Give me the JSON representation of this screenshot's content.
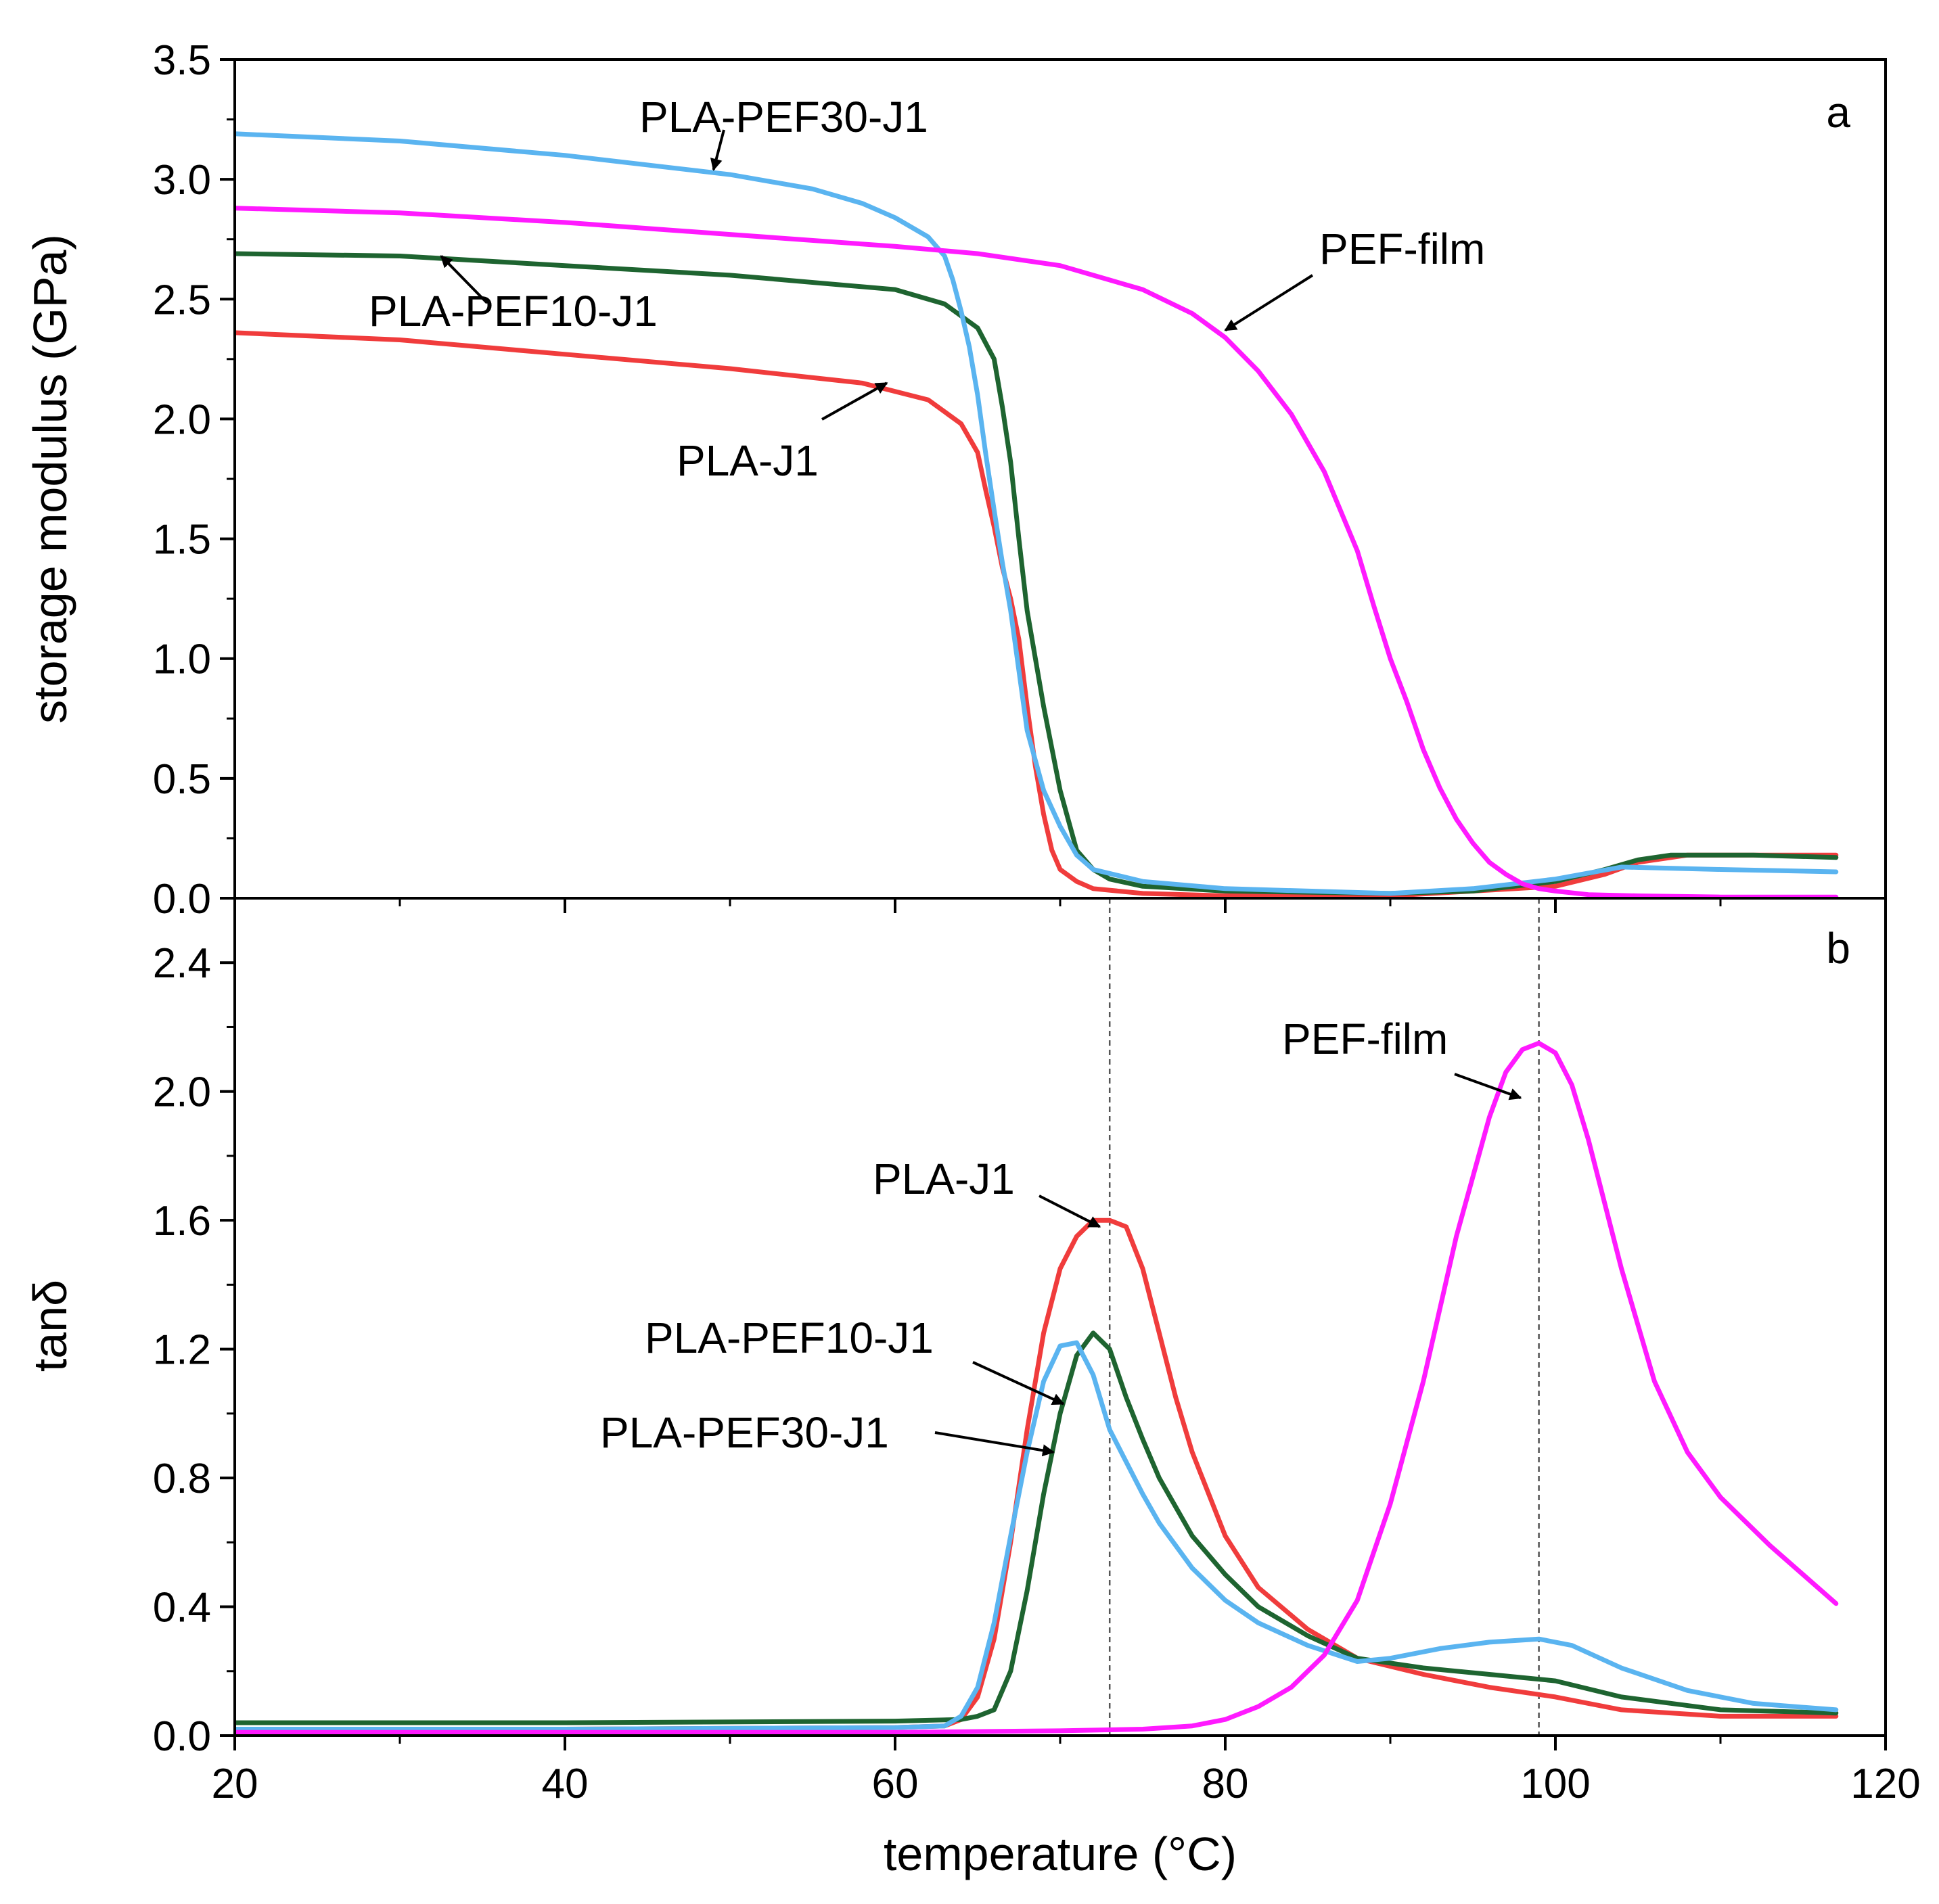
{
  "chart_data": [
    {
      "id": "panel-a",
      "type": "line",
      "panel_label": "a",
      "xlabel": "temperature (°C)",
      "ylabel": "storage modulus (GPa)",
      "xlim": [
        20,
        120
      ],
      "ylim": [
        0,
        3.5
      ],
      "xticks": [
        20,
        40,
        60,
        80,
        100,
        120
      ],
      "yticks": [
        "0.0",
        "0.5",
        "1.0",
        "1.5",
        "2.0",
        "2.5",
        "3.0",
        "3.5"
      ],
      "series": [
        {
          "name": "PLA-J1",
          "color": "#f03c3c",
          "x": [
            20,
            30,
            40,
            50,
            58,
            62,
            64,
            65,
            65.5,
            66,
            66.5,
            67,
            67.5,
            68,
            68.5,
            69,
            69.5,
            70,
            71,
            72,
            75,
            80,
            90,
            100,
            103,
            105,
            108,
            112,
            117
          ],
          "y": [
            2.36,
            2.33,
            2.27,
            2.21,
            2.15,
            2.08,
            1.98,
            1.86,
            1.7,
            1.55,
            1.38,
            1.25,
            1.08,
            0.8,
            0.55,
            0.35,
            0.2,
            0.12,
            0.07,
            0.04,
            0.02,
            0.01,
            0.01,
            0.05,
            0.1,
            0.15,
            0.18,
            0.18,
            0.18
          ]
        },
        {
          "name": "PLA-PEF10-J1",
          "color": "#1e6430",
          "x": [
            20,
            30,
            40,
            50,
            60,
            63,
            65,
            66,
            66.5,
            67,
            67.5,
            68,
            69,
            70,
            71,
            72,
            73,
            75,
            80,
            90,
            95,
            100,
            103,
            105,
            107,
            112,
            117
          ],
          "y": [
            2.69,
            2.68,
            2.64,
            2.6,
            2.54,
            2.48,
            2.38,
            2.25,
            2.05,
            1.82,
            1.5,
            1.2,
            0.8,
            0.45,
            0.2,
            0.12,
            0.08,
            0.05,
            0.03,
            0.02,
            0.03,
            0.07,
            0.12,
            0.16,
            0.18,
            0.18,
            0.17
          ]
        },
        {
          "name": "PLA-PEF30-J1",
          "color": "#5ab4f0",
          "x": [
            20,
            30,
            40,
            50,
            55,
            58,
            60,
            62,
            63,
            63.5,
            64,
            64.5,
            65,
            65.5,
            66,
            66.5,
            67,
            67.5,
            68,
            69,
            70,
            71,
            72,
            75,
            80,
            90,
            95,
            100,
            104,
            110,
            117
          ],
          "y": [
            3.19,
            3.16,
            3.1,
            3.02,
            2.96,
            2.9,
            2.84,
            2.76,
            2.68,
            2.58,
            2.45,
            2.3,
            2.1,
            1.85,
            1.62,
            1.4,
            1.2,
            0.95,
            0.7,
            0.45,
            0.3,
            0.18,
            0.12,
            0.07,
            0.04,
            0.02,
            0.04,
            0.08,
            0.13,
            0.12,
            0.11
          ]
        },
        {
          "name": "PEF-film",
          "color": "#ff1aff",
          "x": [
            20,
            30,
            40,
            50,
            60,
            65,
            70,
            72,
            75,
            78,
            80,
            82,
            84,
            86,
            88,
            89,
            90,
            91,
            92,
            93,
            94,
            95,
            96,
            97,
            98,
            99,
            100,
            102,
            105,
            110,
            117
          ],
          "y": [
            2.88,
            2.86,
            2.82,
            2.77,
            2.72,
            2.69,
            2.64,
            2.6,
            2.54,
            2.44,
            2.34,
            2.2,
            2.02,
            1.78,
            1.45,
            1.22,
            1.0,
            0.82,
            0.62,
            0.46,
            0.33,
            0.23,
            0.15,
            0.1,
            0.06,
            0.04,
            0.03,
            0.015,
            0.01,
            0.005,
            0.005
          ]
        }
      ],
      "annotations": [
        {
          "text": "PLA-PEF30-J1",
          "series": "PLA-PEF30-J1",
          "arrow_to": [
            49,
            3.04
          ]
        },
        {
          "text": "PEF-film",
          "series": "PEF-film",
          "arrow_to": [
            80,
            2.37
          ]
        },
        {
          "text": "PLA-PEF10-J1",
          "series": "PLA-PEF10-J1",
          "arrow_to": [
            32.5,
            2.68
          ]
        },
        {
          "text": "PLA-J1",
          "series": "PLA-J1",
          "arrow_to": [
            59.5,
            2.15
          ]
        }
      ]
    },
    {
      "id": "panel-b",
      "type": "line",
      "panel_label": "b",
      "xlabel": "temperature (°C)",
      "ylabel": "tanδ",
      "xlim": [
        20,
        120
      ],
      "ylim": [
        0,
        2.6
      ],
      "xticks": [
        20,
        40,
        60,
        80,
        100,
        120
      ],
      "yticks": [
        "0.0",
        "0.4",
        "0.8",
        "1.2",
        "1.6",
        "2.0",
        "2.4"
      ],
      "reference_lines_x": [
        73,
        99
      ],
      "series": [
        {
          "name": "PLA-J1",
          "color": "#f03c3c",
          "x": [
            20,
            40,
            60,
            63,
            64,
            65,
            66,
            67,
            68,
            69,
            70,
            71,
            72,
            73,
            74,
            75,
            76,
            77,
            78,
            80,
            82,
            85,
            88,
            92,
            96,
            100,
            104,
            110,
            117
          ],
          "y": [
            0.02,
            0.02,
            0.025,
            0.03,
            0.05,
            0.12,
            0.3,
            0.6,
            0.95,
            1.25,
            1.45,
            1.55,
            1.6,
            1.6,
            1.58,
            1.45,
            1.25,
            1.05,
            0.88,
            0.62,
            0.46,
            0.33,
            0.24,
            0.19,
            0.15,
            0.12,
            0.08,
            0.06,
            0.06
          ]
        },
        {
          "name": "PLA-PEF10-J1",
          "color": "#1e6430",
          "x": [
            20,
            40,
            60,
            64,
            65,
            66,
            67,
            68,
            69,
            70,
            71,
            72,
            73,
            74,
            75,
            76,
            78,
            80,
            82,
            85,
            88,
            92,
            96,
            100,
            104,
            110,
            117
          ],
          "y": [
            0.04,
            0.04,
            0.045,
            0.05,
            0.06,
            0.08,
            0.2,
            0.45,
            0.75,
            1.0,
            1.18,
            1.25,
            1.2,
            1.05,
            0.92,
            0.8,
            0.62,
            0.5,
            0.4,
            0.31,
            0.24,
            0.21,
            0.19,
            0.17,
            0.12,
            0.08,
            0.07
          ]
        },
        {
          "name": "PLA-PEF30-J1",
          "color": "#5ab4f0",
          "x": [
            20,
            40,
            60,
            63,
            64,
            65,
            66,
            67,
            68,
            69,
            70,
            71,
            72,
            73,
            74,
            75,
            76,
            78,
            80,
            82,
            85,
            88,
            90,
            93,
            96,
            99,
            101,
            104,
            108,
            112,
            117
          ],
          "y": [
            0.02,
            0.02,
            0.025,
            0.03,
            0.06,
            0.15,
            0.35,
            0.62,
            0.88,
            1.1,
            1.21,
            1.22,
            1.12,
            0.95,
            0.85,
            0.75,
            0.66,
            0.52,
            0.42,
            0.35,
            0.28,
            0.23,
            0.24,
            0.27,
            0.29,
            0.3,
            0.28,
            0.21,
            0.14,
            0.1,
            0.08
          ]
        },
        {
          "name": "PEF-film",
          "color": "#ff1aff",
          "x": [
            20,
            40,
            60,
            70,
            75,
            78,
            80,
            82,
            84,
            86,
            88,
            90,
            92,
            94,
            96,
            97,
            98,
            99,
            100,
            101,
            102,
            104,
            106,
            108,
            110,
            113,
            117
          ],
          "y": [
            0.01,
            0.01,
            0.01,
            0.015,
            0.02,
            0.03,
            0.05,
            0.09,
            0.15,
            0.25,
            0.42,
            0.72,
            1.1,
            1.55,
            1.92,
            2.06,
            2.13,
            2.15,
            2.12,
            2.02,
            1.85,
            1.45,
            1.1,
            0.88,
            0.74,
            0.59,
            0.41
          ]
        }
      ],
      "annotations": [
        {
          "text": "PEF-film",
          "series": "PEF-film",
          "arrow_to": [
            97.9,
            1.98
          ]
        },
        {
          "text": "PLA-J1",
          "series": "PLA-J1",
          "arrow_to": [
            72.4,
            1.58
          ]
        },
        {
          "text": "PLA-PEF10-J1",
          "series": "PLA-PEF10-J1",
          "arrow_to": [
            70.2,
            1.03
          ]
        },
        {
          "text": "PLA-PEF30-J1",
          "series": "PLA-PEF30-J1",
          "arrow_to": [
            69.6,
            0.88
          ]
        }
      ]
    }
  ]
}
